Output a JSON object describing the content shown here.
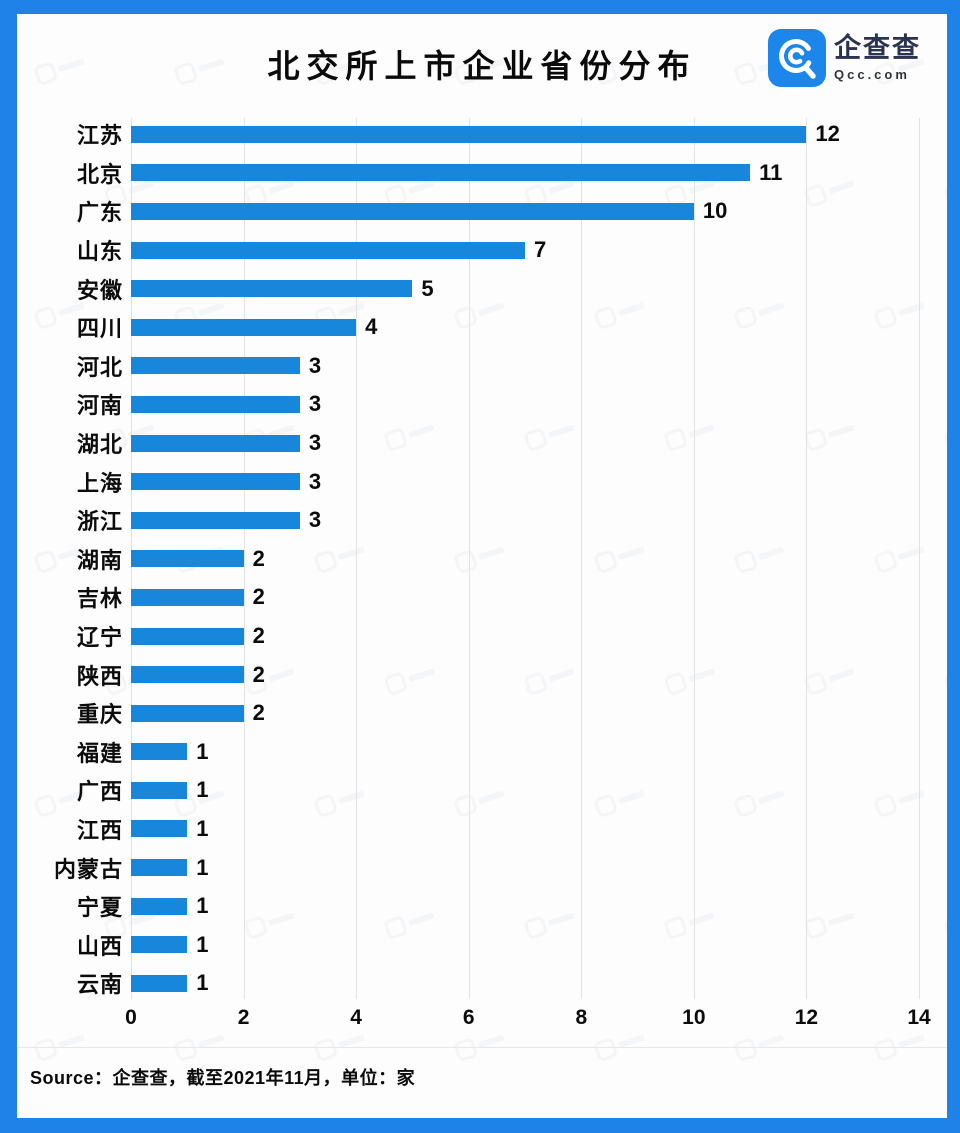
{
  "header": {
    "title": "北交所上市企业省份分布",
    "logo": {
      "brand": "企查查",
      "domain": "Qcc.com",
      "icon": "qcc-magnifier-icon",
      "icon_color": "#1d86ea"
    }
  },
  "chart_data": {
    "type": "bar",
    "orientation": "horizontal",
    "title": "北交所上市企业省份分布",
    "categories": [
      "江苏",
      "北京",
      "广东",
      "山东",
      "安徽",
      "四川",
      "河北",
      "河南",
      "湖北",
      "上海",
      "浙江",
      "湖南",
      "吉林",
      "辽宁",
      "陕西",
      "重庆",
      "福建",
      "广西",
      "江西",
      "内蒙古",
      "宁夏",
      "山西",
      "云南"
    ],
    "values": [
      12,
      11,
      10,
      7,
      5,
      4,
      3,
      3,
      3,
      3,
      3,
      2,
      2,
      2,
      2,
      2,
      1,
      1,
      1,
      1,
      1,
      1,
      1
    ],
    "xlim": [
      0,
      14
    ],
    "xticks": [
      0,
      2,
      4,
      6,
      8,
      10,
      12,
      14
    ],
    "unit": "家",
    "grid": true,
    "legend": false,
    "bar_color": "#1887db"
  },
  "footer": {
    "source": "Source：企查查，截至2021年11月，单位：家"
  },
  "colors": {
    "frame": "#1e82e8",
    "bar": "#1887db",
    "grid": "#e2e2e2",
    "text": "#0b0b0b"
  }
}
